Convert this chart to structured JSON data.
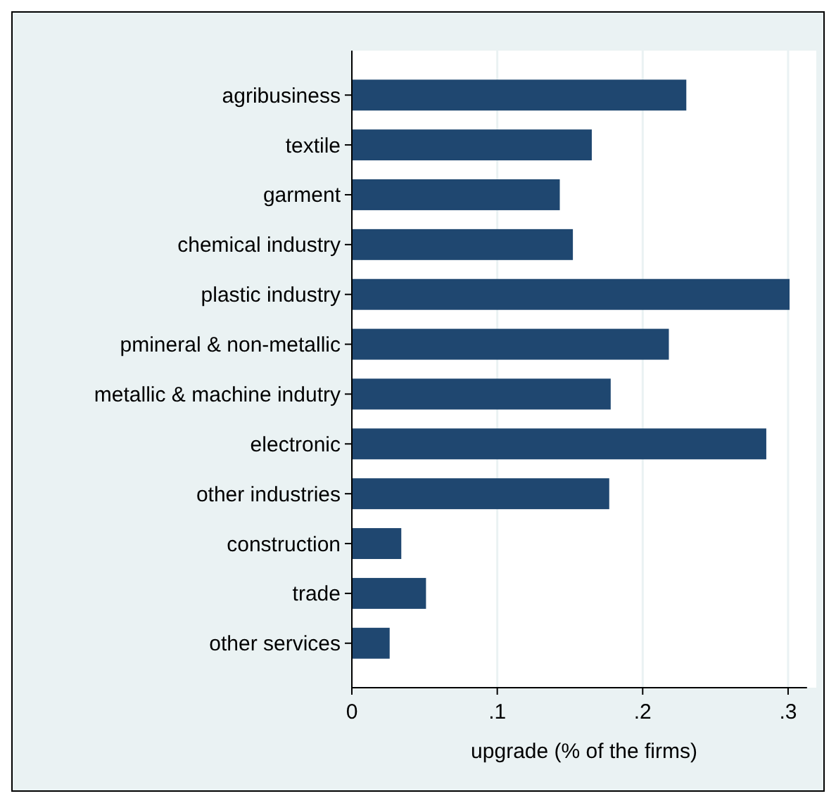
{
  "chart_data": {
    "type": "bar",
    "orientation": "horizontal",
    "xlabel": "upgrade (% of the firms)",
    "categories": [
      "agribusiness",
      "textile",
      "garment",
      "chemical industry",
      "plastic industry",
      "pmineral & non-metallic",
      "metallic & machine indutry",
      "electronic",
      "other industries",
      "construction",
      "trade",
      "other services"
    ],
    "values": [
      0.23,
      0.165,
      0.143,
      0.152,
      0.301,
      0.218,
      0.178,
      0.285,
      0.177,
      0.034,
      0.051,
      0.026
    ],
    "color": "#1f4770",
    "xlim": [
      0,
      0.313
    ],
    "xticks": [
      {
        "value": 0,
        "label": "0"
      },
      {
        "value": 0.1,
        "label": ".1"
      },
      {
        "value": 0.2,
        "label": ".2"
      },
      {
        "value": 0.3,
        "label": ".3"
      }
    ],
    "grid": "x"
  }
}
